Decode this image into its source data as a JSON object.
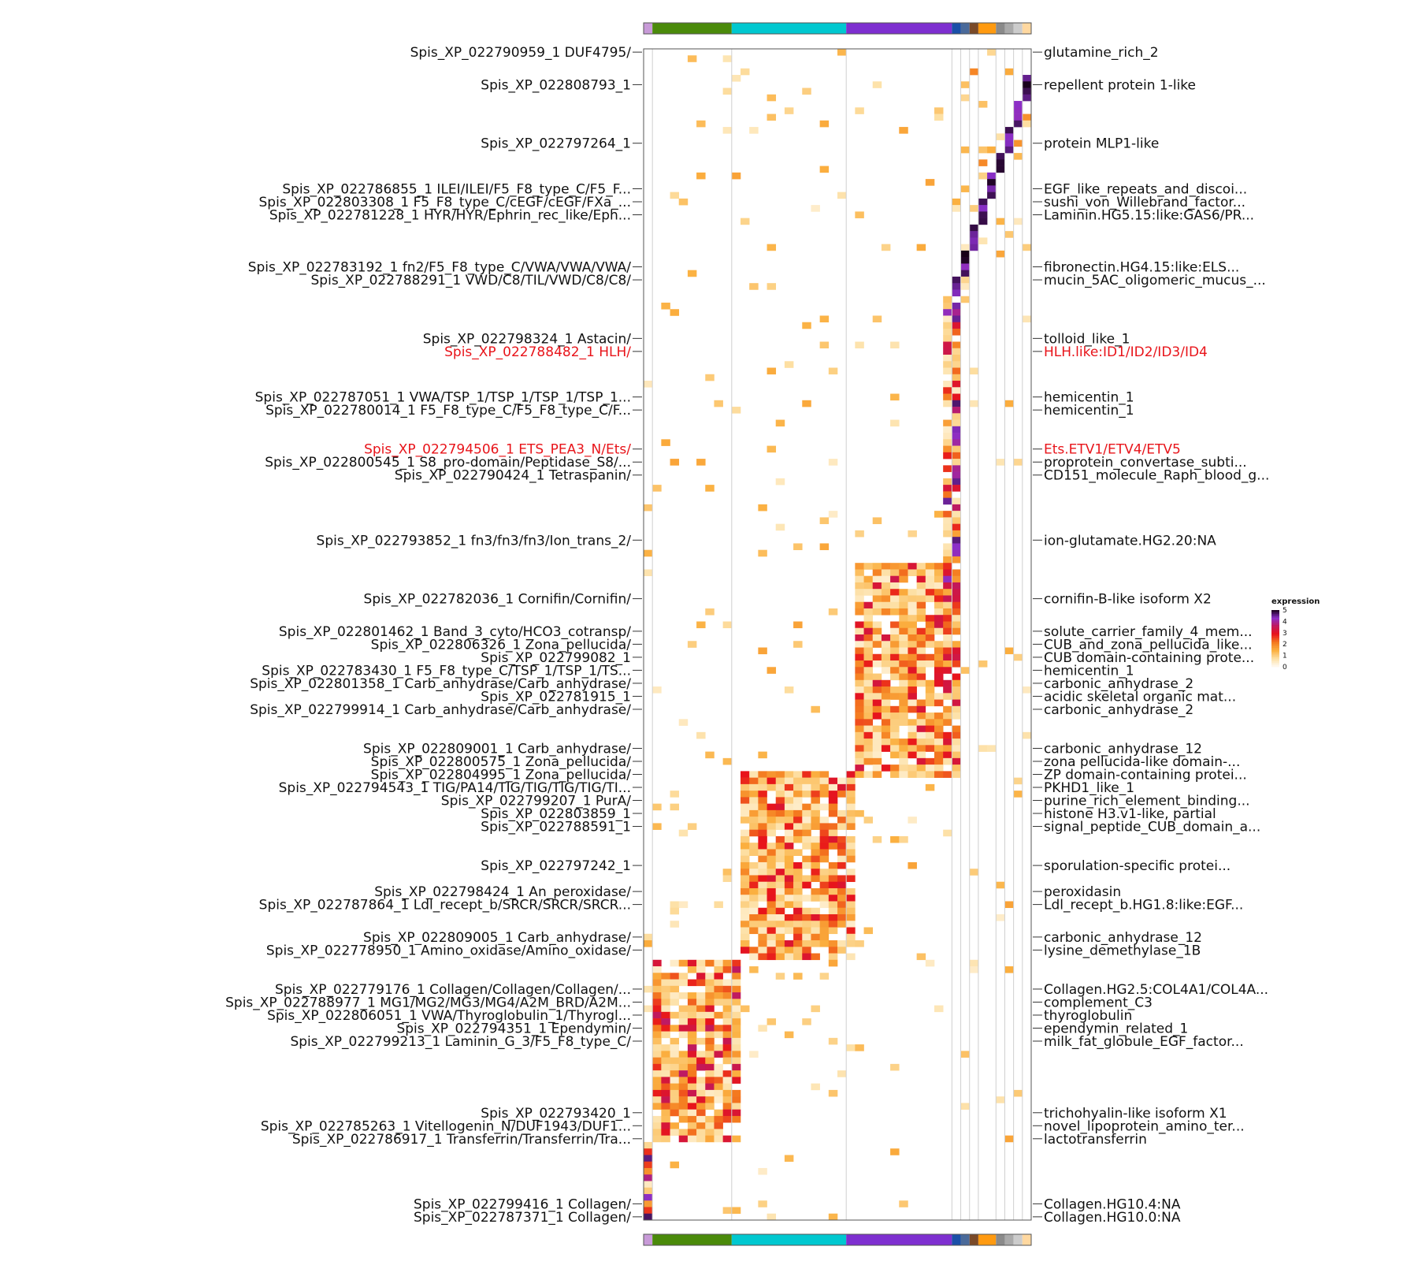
{
  "chart_data": {
    "type": "heatmap",
    "title": "",
    "legend": {
      "title": "expression",
      "ticks": [
        "5",
        "4",
        "3",
        "2",
        "1",
        "0"
      ],
      "range": [
        0,
        5
      ],
      "placement": "right"
    },
    "colors": {
      "scale": [
        "#fffaf3",
        "#fde0a5",
        "#fbb040",
        "#f47a1f",
        "#e8141a",
        "#c2185b",
        "#8b2fc9",
        "#160016"
      ],
      "highlight_label": "#e8141a"
    },
    "column_groups": [
      {
        "color": "#c89ad8",
        "columns": 1
      },
      {
        "color": "#4a8a0a",
        "columns": 9
      },
      {
        "color": "#00c8d0",
        "columns": 13
      },
      {
        "color": "#7e2fd0",
        "columns": 12
      },
      {
        "color": "#1a4fa8",
        "columns": 1
      },
      {
        "color": "#4a6a9a",
        "columns": 1
      },
      {
        "color": "#7a4a28",
        "columns": 1
      },
      {
        "color": "#ff9a10",
        "columns": 2
      },
      {
        "color": "#8a8a8a",
        "columns": 1
      },
      {
        "color": "#aaaaaa",
        "columns": 1
      },
      {
        "color": "#cccccc",
        "columns": 1
      },
      {
        "color": "#ffd8a0",
        "columns": 1
      }
    ],
    "row_count": 180,
    "left_labels": [
      {
        "text": "Spis_XP_022790959_1 DUF4795/",
        "row": 1,
        "highlight": false
      },
      {
        "text": "Spis_XP_022808793_1",
        "row": 6,
        "highlight": false
      },
      {
        "text": "Spis_XP_022797264_1",
        "row": 15,
        "highlight": false
      },
      {
        "text": "Spis_XP_022786855_1 ILEI/ILEI/F5_F8_type_C/F5_F...",
        "row": 22,
        "highlight": false
      },
      {
        "text": "Spis_XP_022803308_1 F5_F8_type_C/cEGF/cEGF/FXa_...",
        "row": 24,
        "highlight": false
      },
      {
        "text": "Spis_XP_022781228_1 HYR/HYR/Ephrin_rec_like/Eph...",
        "row": 26,
        "highlight": false
      },
      {
        "text": "Spis_XP_022783192_1 fn2/F5_F8_type_C/VWA/VWA/VWA/",
        "row": 34,
        "highlight": false
      },
      {
        "text": "Spis_XP_022788291_1 VWD/C8/TIL/VWD/C8/C8/",
        "row": 36,
        "highlight": false
      },
      {
        "text": "Spis_XP_022798324_1 Astacin/",
        "row": 45,
        "highlight": false
      },
      {
        "text": "Spis_XP_022788482_1 HLH/",
        "row": 47,
        "highlight": true
      },
      {
        "text": "Spis_XP_022787051_1 VWA/TSP_1/TSP_1/TSP_1/TSP_1...",
        "row": 54,
        "highlight": false
      },
      {
        "text": "Spis_XP_022780014_1 F5_F8_type_C/F5_F8_type_C/F...",
        "row": 56,
        "highlight": false
      },
      {
        "text": "Spis_XP_022794506_1 ETS_PEA3_N/Ets/",
        "row": 62,
        "highlight": true
      },
      {
        "text": "Spis_XP_022800545_1 S8_pro-domain/Peptidase_S8/...",
        "row": 64,
        "highlight": false
      },
      {
        "text": "Spis_XP_022790424_1 Tetraspanin/",
        "row": 66,
        "highlight": false
      },
      {
        "text": "Spis_XP_022793852_1 fn3/fn3/fn3/Ion_trans_2/",
        "row": 76,
        "highlight": false
      },
      {
        "text": "Spis_XP_022782036_1 Cornifin/Cornifin/",
        "row": 85,
        "highlight": false
      },
      {
        "text": "Spis_XP_022801462_1 Band_3_cyto/HCO3_cotransp/",
        "row": 90,
        "highlight": false
      },
      {
        "text": "Spis_XP_022806326_1 Zona_pellucida/",
        "row": 92,
        "highlight": false
      },
      {
        "text": "Spis_XP_022799082_1",
        "row": 94,
        "highlight": false
      },
      {
        "text": "Spis_XP_022783430_1 F5_F8_type_C/TSP_1/TSP_1/TS...",
        "row": 96,
        "highlight": false
      },
      {
        "text": "Spis_XP_022801358_1 Carb_anhydrase/Carb_anhydrase/",
        "row": 98,
        "highlight": false
      },
      {
        "text": "Spis_XP_022781915_1",
        "row": 100,
        "highlight": false
      },
      {
        "text": "Spis_XP_022799914_1 Carb_anhydrase/Carb_anhydrase/",
        "row": 102,
        "highlight": false
      },
      {
        "text": "Spis_XP_022809001_1 Carb_anhydrase/",
        "row": 108,
        "highlight": false
      },
      {
        "text": "Spis_XP_022800575_1 Zona_pellucida/",
        "row": 110,
        "highlight": false
      },
      {
        "text": "Spis_XP_022804995_1 Zona_pellucida/",
        "row": 112,
        "highlight": false
      },
      {
        "text": "Spis_XP_022794543_1 TIG/PA14/TIG/TIG/TIG/TIG/TI...",
        "row": 114,
        "highlight": false
      },
      {
        "text": "Spis_XP_022799207_1 PurA/",
        "row": 116,
        "highlight": false
      },
      {
        "text": "Spis_XP_022803859_1",
        "row": 118,
        "highlight": false
      },
      {
        "text": "Spis_XP_022788591_1",
        "row": 120,
        "highlight": false
      },
      {
        "text": "Spis_XP_022797242_1",
        "row": 126,
        "highlight": false
      },
      {
        "text": "Spis_XP_022798424_1 An_peroxidase/",
        "row": 130,
        "highlight": false
      },
      {
        "text": "Spis_XP_022787864_1 Ldl_recept_b/SRCR/SRCR/SRCR...",
        "row": 132,
        "highlight": false
      },
      {
        "text": "Spis_XP_022809005_1 Carb_anhydrase/",
        "row": 137,
        "highlight": false
      },
      {
        "text": "Spis_XP_022778950_1 Amino_oxidase/Amino_oxidase/",
        "row": 139,
        "highlight": false
      },
      {
        "text": "Spis_XP_022779176_1 Collagen/Collagen/Collagen/...",
        "row": 145,
        "highlight": false
      },
      {
        "text": "Spis_XP_022788977_1 MG1/MG2/MG3/MG4/A2M_BRD/A2M...",
        "row": 147,
        "highlight": false
      },
      {
        "text": "Spis_XP_022806051_1 VWA/Thyroglobulin_1/Thyrogl...",
        "row": 149,
        "highlight": false
      },
      {
        "text": "Spis_XP_022794351_1 Ependymin/",
        "row": 151,
        "highlight": false
      },
      {
        "text": "Spis_XP_022799213_1 Laminin_G_3/F5_F8_type_C/",
        "row": 153,
        "highlight": false
      },
      {
        "text": "Spis_XP_022793420_1",
        "row": 164,
        "highlight": false
      },
      {
        "text": "Spis_XP_022785263_1 Vitellogenin_N/DUF1943/DUF1...",
        "row": 166,
        "highlight": false
      },
      {
        "text": "Spis_XP_022786917_1 Transferrin/Transferrin/Tra...",
        "row": 168,
        "highlight": false
      },
      {
        "text": "Spis_XP_022799416_1 Collagen/",
        "row": 178,
        "highlight": false
      },
      {
        "text": "Spis_XP_022787371_1 Collagen/",
        "row": 180,
        "highlight": false
      }
    ],
    "right_labels": [
      {
        "text": "glutamine_rich_2",
        "row": 1,
        "highlight": false
      },
      {
        "text": "repellent protein 1-like",
        "row": 6,
        "highlight": false
      },
      {
        "text": "protein MLP1-like",
        "row": 15,
        "highlight": false
      },
      {
        "text": "EGF_like_repeats_and_discoi...",
        "row": 22,
        "highlight": false
      },
      {
        "text": "sushi_von_Willebrand_factor...",
        "row": 24,
        "highlight": false
      },
      {
        "text": "Laminin.HG5.15:like:GAS6/PR...",
        "row": 26,
        "highlight": false
      },
      {
        "text": "fibronectin.HG4.15:like:ELS...",
        "row": 34,
        "highlight": false
      },
      {
        "text": "mucin_5AC_oligomeric_mucus_...",
        "row": 36,
        "highlight": false
      },
      {
        "text": "tolloid_like_1",
        "row": 45,
        "highlight": false
      },
      {
        "text": "HLH.like:ID1/ID2/ID3/ID4",
        "row": 47,
        "highlight": true
      },
      {
        "text": "hemicentin_1",
        "row": 54,
        "highlight": false
      },
      {
        "text": "hemicentin_1",
        "row": 56,
        "highlight": false
      },
      {
        "text": "Ets.ETV1/ETV4/ETV5",
        "row": 62,
        "highlight": true
      },
      {
        "text": "proprotein_convertase_subti...",
        "row": 64,
        "highlight": false
      },
      {
        "text": "CD151_molecule_Raph_blood_g...",
        "row": 66,
        "highlight": false
      },
      {
        "text": "ion-glutamate.HG2.20:NA",
        "row": 76,
        "highlight": false
      },
      {
        "text": "cornifin-B-like isoform X2",
        "row": 85,
        "highlight": false
      },
      {
        "text": "solute_carrier_family_4_mem...",
        "row": 90,
        "highlight": false
      },
      {
        "text": "CUB_and_zona_pellucida_like...",
        "row": 92,
        "highlight": false
      },
      {
        "text": "CUB domain-containing prote...",
        "row": 94,
        "highlight": false
      },
      {
        "text": "hemicentin_1",
        "row": 96,
        "highlight": false
      },
      {
        "text": "carbonic_anhydrase_2",
        "row": 98,
        "highlight": false
      },
      {
        "text": "acidic skeletal organic mat...",
        "row": 100,
        "highlight": false
      },
      {
        "text": "carbonic_anhydrase_2",
        "row": 102,
        "highlight": false
      },
      {
        "text": "carbonic_anhydrase_12",
        "row": 108,
        "highlight": false
      },
      {
        "text": "zona pellucida-like domain-...",
        "row": 110,
        "highlight": false
      },
      {
        "text": "ZP domain-containing protei...",
        "row": 112,
        "highlight": false
      },
      {
        "text": "PKHD1_like_1",
        "row": 114,
        "highlight": false
      },
      {
        "text": "purine_rich_element_binding...",
        "row": 116,
        "highlight": false
      },
      {
        "text": "histone H3.v1-like, partial",
        "row": 118,
        "highlight": false
      },
      {
        "text": "signal_peptide_CUB_domain_a...",
        "row": 120,
        "highlight": false
      },
      {
        "text": "sporulation-specific protei...",
        "row": 126,
        "highlight": false
      },
      {
        "text": "peroxidasin",
        "row": 130,
        "highlight": false
      },
      {
        "text": "Ldl_recept_b.HG1.8:like:EGF...",
        "row": 132,
        "highlight": false
      },
      {
        "text": "carbonic_anhydrase_12",
        "row": 137,
        "highlight": false
      },
      {
        "text": "lysine_demethylase_1B",
        "row": 139,
        "highlight": false
      },
      {
        "text": "Collagen.HG2.5:COL4A1/COL4A...",
        "row": 145,
        "highlight": false
      },
      {
        "text": "complement_C3",
        "row": 147,
        "highlight": false
      },
      {
        "text": "thyroglobulin",
        "row": 149,
        "highlight": false
      },
      {
        "text": "ependymin_related_1",
        "row": 151,
        "highlight": false
      },
      {
        "text": "milk_fat_globule_EGF_factor...",
        "row": 153,
        "highlight": false
      },
      {
        "text": "trichohyalin-like isoform X1",
        "row": 164,
        "highlight": false
      },
      {
        "text": "novel_lipoprotein_amino_ter...",
        "row": 166,
        "highlight": false
      },
      {
        "text": "lactotransferrin",
        "row": 168,
        "highlight": false
      },
      {
        "text": "Collagen.HG10.4:NA",
        "row": 178,
        "highlight": false
      },
      {
        "text": "Collagen.HG10.0:NA",
        "row": 180,
        "highlight": false
      }
    ],
    "blocks": [
      {
        "rows": [
          1,
          38
        ],
        "columns": [
          36,
          45
        ],
        "level": 4.2,
        "note_row_for_cols": "diagonal"
      },
      {
        "rows": [
          39,
          85
        ],
        "columns": [
          35,
          36
        ],
        "level": 3.6
      },
      {
        "rows": [
          80,
          112
        ],
        "columns": [
          25,
          36
        ],
        "level": 2.6
      },
      {
        "rows": [
          112,
          140
        ],
        "columns": [
          12,
          24
        ],
        "level": 2.4
      },
      {
        "rows": [
          141,
          168
        ],
        "columns": [
          2,
          11
        ],
        "level": 2.8
      },
      {
        "rows": [
          169,
          180
        ],
        "columns": [
          1,
          1
        ],
        "level": 3.8
      }
    ],
    "grid": false
  }
}
